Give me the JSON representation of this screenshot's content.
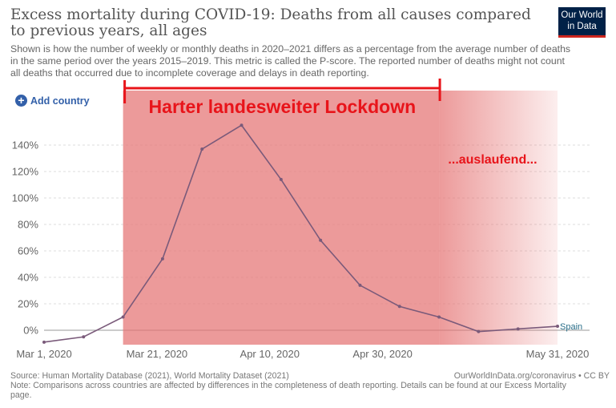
{
  "header": {
    "title": "Excess mortality during COVID-19: Deaths from all causes compared to previous years, all ages",
    "subtitle": "Shown is how the number of weekly or monthly deaths in 2020–2021 differs as a percentage from the average number of deaths in the same period over the years 2015–2019. This metric is called the P-score. The reported number of deaths might not count all deaths that occurred due to incomplete coverage and delays in death reporting.",
    "logo_line1": "Our World",
    "logo_line2": "in Data"
  },
  "controls": {
    "add_country_label": "Add country"
  },
  "footer": {
    "source": "Source: Human Mortality Database (2021), World Mortality Dataset (2021)",
    "link": "OurWorldInData.org/coronavirus • CC BY",
    "note": "Note: Comparisons across countries are affected by differences in the completeness of death reporting. Details can be found at our Excess Mortality page."
  },
  "colors": {
    "shade": "#e57373",
    "line": "#7a5a7a",
    "annotation": "#e8141a",
    "series_label": "#2a6f8a"
  },
  "chart_data": {
    "type": "line",
    "x_ticks": [
      "Mar 1, 2020",
      "Mar 21, 2020",
      "Apr 10, 2020",
      "Apr 30, 2020",
      "May 31, 2020"
    ],
    "y_ticks": [
      "0%",
      "20%",
      "40%",
      "60%",
      "80%",
      "100%",
      "120%",
      "140%"
    ],
    "ylim": [
      -10,
      160
    ],
    "xlim": [
      "2020-03-01",
      "2020-05-31"
    ],
    "series": [
      {
        "name": "Spain",
        "points": [
          {
            "x": "2020-03-01",
            "y": -9
          },
          {
            "x": "2020-03-08",
            "y": -5
          },
          {
            "x": "2020-03-15",
            "y": 10
          },
          {
            "x": "2020-03-22",
            "y": 54
          },
          {
            "x": "2020-03-29",
            "y": 137
          },
          {
            "x": "2020-04-05",
            "y": 155
          },
          {
            "x": "2020-04-12",
            "y": 114
          },
          {
            "x": "2020-04-19",
            "y": 68
          },
          {
            "x": "2020-04-26",
            "y": 34
          },
          {
            "x": "2020-05-03",
            "y": 18
          },
          {
            "x": "2020-05-10",
            "y": 10
          },
          {
            "x": "2020-05-17",
            "y": -1
          },
          {
            "x": "2020-05-24",
            "y": 1
          },
          {
            "x": "2020-05-31",
            "y": 3
          }
        ]
      }
    ],
    "annotations": {
      "lockdown_label": "Harter landesweiter Lockdown",
      "phaseout_label": "...auslaufend...",
      "lockdown_start": "2020-03-15",
      "lockdown_solid_end": "2020-05-10",
      "phaseout_end": "2020-05-31"
    },
    "grid": true
  }
}
